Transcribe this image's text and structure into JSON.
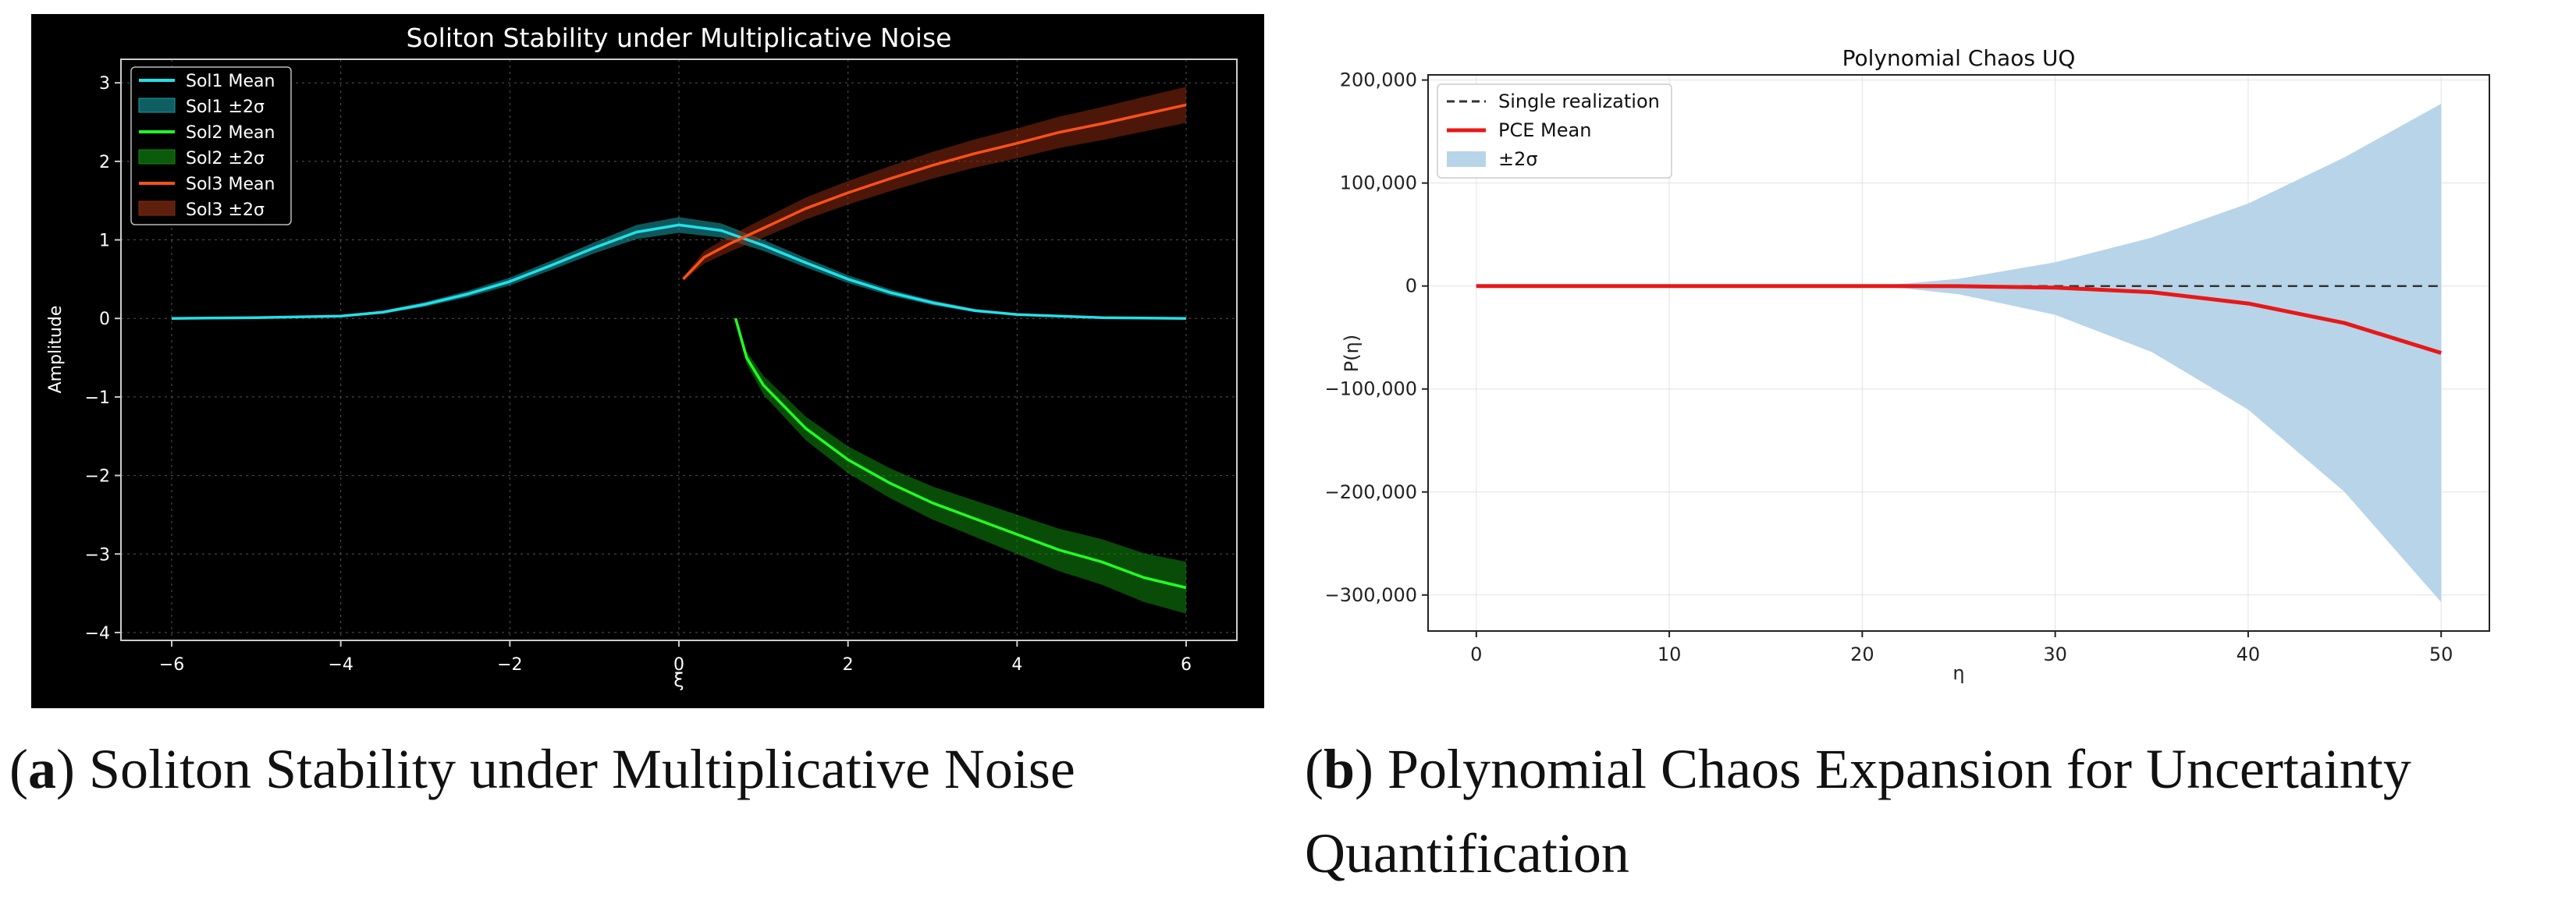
{
  "captions": {
    "a": {
      "label": "a",
      "text": "Soliton Stability under Multiplicative Noise"
    },
    "b": {
      "label": "b",
      "text": "Polynomial Chaos Expansion for Uncertainty Quantification"
    }
  },
  "chart_data": [
    {
      "id": "soliton",
      "type": "line",
      "theme": "dark",
      "title": "Soliton Stability under Multiplicative Noise",
      "xlabel": "ξ",
      "ylabel": "Amplitude",
      "xlim": [
        -6.6,
        6.6
      ],
      "ylim": [
        -4.1,
        3.3
      ],
      "xticks": [
        -6,
        -4,
        -2,
        0,
        2,
        4,
        6
      ],
      "xtick_labels": [
        "−6",
        "−4",
        "−2",
        "0",
        "2",
        "4",
        "6"
      ],
      "yticks": [
        -4,
        -3,
        -2,
        -1,
        0,
        1,
        2,
        3
      ],
      "ytick_labels": [
        "−4",
        "−3",
        "−2",
        "−1",
        "0",
        "1",
        "2",
        "3"
      ],
      "grid": true,
      "legend_position": "top-left",
      "legend": [
        "Sol1 Mean",
        "Sol1 ±2σ",
        "Sol2 Mean",
        "Sol2 ±2σ",
        "Sol3 Mean",
        "Sol3 ±2σ"
      ],
      "series": [
        {
          "name": "Sol1 Mean",
          "band_name": "Sol1 ±2σ",
          "color": "#22e0e8",
          "band_color": "#1aa0a8",
          "x": [
            -6,
            -5,
            -4,
            -3.5,
            -3,
            -2.5,
            -2,
            -1.5,
            -1,
            -0.5,
            0,
            0.5,
            1,
            1.5,
            2,
            2.5,
            3,
            3.5,
            4,
            5,
            6
          ],
          "y": [
            0.0,
            0.01,
            0.03,
            0.08,
            0.18,
            0.31,
            0.47,
            0.68,
            0.9,
            1.1,
            1.19,
            1.12,
            0.93,
            0.71,
            0.5,
            0.33,
            0.2,
            0.1,
            0.05,
            0.01,
            0.0
          ],
          "band": [
            0.0,
            0.0,
            0.01,
            0.02,
            0.03,
            0.04,
            0.05,
            0.06,
            0.07,
            0.09,
            0.1,
            0.09,
            0.07,
            0.06,
            0.05,
            0.04,
            0.03,
            0.02,
            0.01,
            0.0,
            0.0
          ]
        },
        {
          "name": "Sol2 Mean",
          "band_name": "Sol2 ±2σ",
          "color": "#22ff22",
          "band_color": "#0e8a0e",
          "x": [
            0.67,
            0.8,
            1.0,
            1.5,
            2.0,
            2.5,
            3.0,
            3.5,
            4.0,
            4.5,
            5.0,
            5.5,
            6.0
          ],
          "y": [
            0.0,
            -0.5,
            -0.85,
            -1.4,
            -1.8,
            -2.1,
            -2.35,
            -2.55,
            -2.75,
            -2.95,
            -3.1,
            -3.3,
            -3.43
          ],
          "band": [
            0.02,
            0.08,
            0.12,
            0.15,
            0.17,
            0.19,
            0.21,
            0.23,
            0.25,
            0.27,
            0.29,
            0.31,
            0.33
          ]
        },
        {
          "name": "Sol3 Mean",
          "band_name": "Sol3 ±2σ",
          "color": "#ff5018",
          "band_color": "#8a2a0e",
          "x": [
            0.05,
            0.3,
            0.6,
            1.0,
            1.5,
            2.0,
            2.5,
            3.0,
            3.5,
            4.0,
            4.5,
            5.0,
            5.5,
            6.0
          ],
          "y": [
            0.5,
            0.78,
            0.95,
            1.15,
            1.4,
            1.6,
            1.78,
            1.95,
            2.1,
            2.23,
            2.37,
            2.48,
            2.6,
            2.72
          ],
          "band": [
            0.02,
            0.08,
            0.1,
            0.12,
            0.14,
            0.15,
            0.16,
            0.17,
            0.18,
            0.19,
            0.2,
            0.21,
            0.22,
            0.23
          ]
        }
      ]
    },
    {
      "id": "pce",
      "type": "line",
      "theme": "light",
      "title": "Polynomial Chaos UQ",
      "xlabel": "η",
      "ylabel": "P(η)",
      "xlim": [
        -2.5,
        52.5
      ],
      "ylim": [
        -335000,
        205000
      ],
      "xticks": [
        0,
        10,
        20,
        30,
        40,
        50
      ],
      "xtick_labels": [
        "0",
        "10",
        "20",
        "30",
        "40",
        "50"
      ],
      "yticks": [
        200000,
        100000,
        0,
        -100000,
        -200000,
        -300000
      ],
      "ytick_labels": [
        "200,000",
        "100,000",
        "0",
        "−100,000",
        "−200,000",
        "−300,000"
      ],
      "grid": true,
      "legend_position": "top-left",
      "legend": [
        "Single realization",
        "PCE Mean",
        "±2σ"
      ],
      "series": [
        {
          "name": "Single realization",
          "style": "dashed",
          "color": "#333333",
          "x": [
            0,
            50
          ],
          "y": [
            0,
            0
          ]
        },
        {
          "name": "PCE Mean",
          "style": "solid",
          "color": "#e81818",
          "x": [
            0,
            10,
            20,
            25,
            30,
            35,
            40,
            45,
            50
          ],
          "y": [
            0,
            0,
            0,
            -200,
            -1500,
            -6000,
            -17000,
            -36000,
            -65000
          ]
        }
      ],
      "band": {
        "name": "±2σ",
        "color": "#b8d4e8",
        "x": [
          0,
          10,
          20,
          22,
          25,
          30,
          35,
          40,
          45,
          50
        ],
        "upper": [
          0,
          0,
          0,
          2000,
          7000,
          23000,
          47000,
          80000,
          125000,
          177000
        ],
        "lower": [
          0,
          0,
          0,
          -2000,
          -8000,
          -28000,
          -64000,
          -120000,
          -200000,
          -307000
        ]
      }
    }
  ]
}
